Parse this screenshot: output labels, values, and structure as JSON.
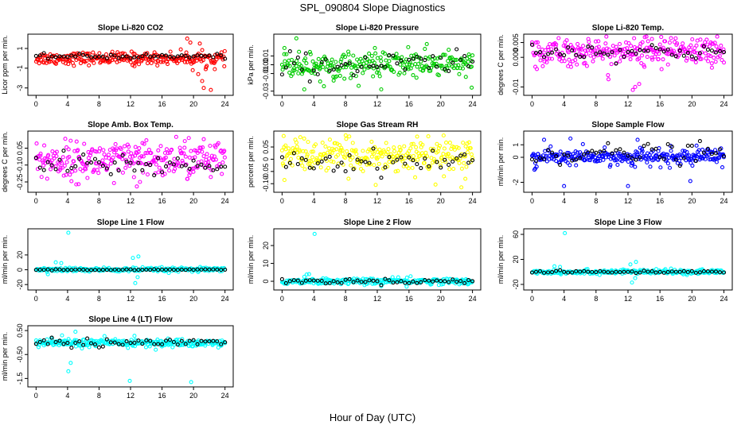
{
  "title": "SPL_090804  Slope Diagnostics",
  "xlabel": "Hour of Day (UTC)",
  "chart_data": [
    {
      "type": "scatter",
      "title": "Slope Li-820 CO2",
      "ylabel": "Licor ppm per min.",
      "color": "#ff0000",
      "xlim": [
        0,
        24
      ],
      "xticks": [
        0,
        4,
        8,
        12,
        16,
        20,
        24
      ],
      "ylim": [
        -3.5,
        2.2
      ],
      "yticks": [
        -3,
        -1,
        1
      ],
      "spread": 0.35,
      "center": 0.0,
      "n": 260,
      "outliers": [
        [
          19.2,
          2.0
        ],
        [
          19.6,
          1.6
        ],
        [
          20.8,
          1.5
        ],
        [
          19.9,
          -1.2
        ],
        [
          20.6,
          -1.6
        ],
        [
          21.1,
          -2.3
        ],
        [
          21.6,
          -0.9
        ],
        [
          22.2,
          -3.2
        ],
        [
          21.3,
          -3.0
        ],
        [
          22.7,
          -1.1
        ],
        [
          12.5,
          -0.8
        ]
      ],
      "black_center": 0.2,
      "black_spread": 0.15
    },
    {
      "type": "scatter",
      "title": "Slope Li-820 Pressure",
      "ylabel": "kPa per min.",
      "color": "#00cc00",
      "xlim": [
        0,
        24
      ],
      "xticks": [
        0,
        4,
        8,
        12,
        16,
        20,
        24
      ],
      "ylim": [
        -0.032,
        0.032
      ],
      "yticks": [
        -0.03,
        -0.01,
        0.0,
        0.01
      ],
      "spread": 0.008,
      "center": 0.0,
      "n": 260,
      "outliers": [
        [
          1.8,
          0.03
        ],
        [
          2.8,
          -0.028
        ],
        [
          12.5,
          -0.028
        ],
        [
          23.9,
          -0.026
        ],
        [
          11.7,
          0.019
        ],
        [
          21.0,
          0.017
        ],
        [
          15.9,
          0.02
        ],
        [
          18.0,
          0.018
        ],
        [
          0.3,
          0.019
        ],
        [
          4.8,
          -0.019
        ],
        [
          6.5,
          -0.018
        ]
      ],
      "black_center": 0.0,
      "black_spread": 0.009
    },
    {
      "type": "scatter",
      "title": "Slope Li-820 Temp.",
      "ylabel": "degrees C per min.",
      "color": "#ff00ff",
      "xlim": [
        0,
        24
      ],
      "xticks": [
        0,
        4,
        8,
        12,
        16,
        20,
        24
      ],
      "ylim": [
        -0.012,
        0.007
      ],
      "yticks": [
        -0.01,
        0.0,
        0.005
      ],
      "spread": 0.0026,
      "center": 0.002,
      "n": 280,
      "outliers": [
        [
          12.6,
          -0.011
        ],
        [
          12.9,
          -0.01
        ],
        [
          13.4,
          -0.009
        ],
        [
          14.1,
          0.0068
        ],
        [
          15.0,
          0.0062
        ],
        [
          9.5,
          -0.006
        ],
        [
          16.2,
          -0.004
        ],
        [
          22.5,
          -0.0035
        ],
        [
          4.5,
          -0.003
        ]
      ],
      "black_center": 0.002,
      "black_spread": 0.0018
    },
    {
      "type": "scatter",
      "title": "Slope Amb. Box Temp.",
      "ylabel": "degrees C per min.",
      "color": "#ff00ff",
      "xlim": [
        0,
        24
      ],
      "xticks": [
        0,
        4,
        8,
        12,
        16,
        20,
        24
      ],
      "ylim": [
        -0.32,
        0.18
      ],
      "yticks": [
        -0.25,
        -0.1,
        0.05
      ],
      "spread": 0.09,
      "center": -0.06,
      "n": 280,
      "outliers": [
        [
          12.8,
          -0.29
        ],
        [
          13.2,
          -0.25
        ],
        [
          9.9,
          -0.26
        ],
        [
          5.4,
          -0.27
        ],
        [
          17.8,
          0.15
        ],
        [
          19.4,
          0.14
        ],
        [
          21.3,
          0.13
        ]
      ],
      "black_center": -0.1,
      "black_spread": 0.07
    },
    {
      "type": "scatter",
      "title": "Slope Gas Stream RH",
      "ylabel": "percent per min.",
      "color": "#ffff00",
      "xlim": [
        0,
        24
      ],
      "xticks": [
        0,
        4,
        8,
        12,
        16,
        20,
        24
      ],
      "ylim": [
        -0.125,
        0.105
      ],
      "yticks": [
        -0.1,
        -0.05,
        0.0,
        0.05
      ],
      "spread": 0.035,
      "center": 0.015,
      "n": 280,
      "outliers": [
        [
          0.3,
          -0.085
        ],
        [
          22.6,
          -0.115
        ],
        [
          11.8,
          -0.105
        ],
        [
          23.1,
          -0.08
        ],
        [
          0.2,
          0.095
        ],
        [
          2.3,
          0.09
        ],
        [
          20.4,
          -0.07
        ]
      ],
      "black_center": -0.01,
      "black_spread": 0.028
    },
    {
      "type": "scatter",
      "title": "Slope Sample Flow",
      "ylabel": "ml/min per min.",
      "color": "#0000ff",
      "xlim": [
        0,
        24
      ],
      "xticks": [
        0,
        4,
        8,
        12,
        16,
        20,
        24
      ],
      "ylim": [
        -2.6,
        1.9
      ],
      "yticks": [
        -2,
        0,
        1
      ],
      "spread": 0.35,
      "center": 0.0,
      "n": 280,
      "outliers": [
        [
          4.0,
          -2.3
        ],
        [
          12.0,
          -2.3
        ],
        [
          19.8,
          -1.9
        ],
        [
          0.3,
          -1.0
        ],
        [
          0.4,
          -0.9
        ],
        [
          23.8,
          -0.8
        ],
        [
          1.5,
          1.4
        ],
        [
          4.8,
          1.5
        ],
        [
          13.2,
          1.4
        ]
      ],
      "black_center": 0.3,
      "black_spread": 0.5
    },
    {
      "type": "scatter",
      "title": "Slope Line 1 Flow",
      "ylabel": "ml/min per min.",
      "color": "#00ffff",
      "xlim": [
        0,
        24
      ],
      "xticks": [
        0,
        4,
        8,
        12,
        16,
        20,
        24
      ],
      "ylim": [
        -24,
        52
      ],
      "yticks": [
        -20,
        0,
        20
      ],
      "spread": 1.6,
      "center": 0.0,
      "n": 260,
      "outliers": [
        [
          4.1,
          50
        ],
        [
          12.6,
          -18
        ],
        [
          12.9,
          -10
        ],
        [
          12.3,
          16
        ],
        [
          13.0,
          18
        ],
        [
          2.5,
          10
        ],
        [
          3.2,
          9
        ],
        [
          1.5,
          -6
        ]
      ],
      "black_center": 0.0,
      "black_spread": 0.4
    },
    {
      "type": "scatter",
      "title": "Slope Line 2 Flow",
      "ylabel": "ml/min per min.",
      "color": "#00ffff",
      "xlim": [
        0,
        24
      ],
      "xticks": [
        0,
        4,
        8,
        12,
        16,
        20,
        24
      ],
      "ylim": [
        -3.5,
        28
      ],
      "yticks": [
        0,
        10,
        20
      ],
      "spread": 0.9,
      "center": 0.0,
      "n": 260,
      "outliers": [
        [
          4.1,
          26.5
        ],
        [
          3.1,
          3.8
        ],
        [
          3.4,
          4.0
        ],
        [
          2.8,
          2.5
        ],
        [
          12.5,
          -2.8
        ],
        [
          15.7,
          -3.0
        ],
        [
          16.2,
          2.8
        ],
        [
          23.5,
          -1.5
        ]
      ],
      "black_center": 0.0,
      "black_spread": 0.8
    },
    {
      "type": "scatter",
      "title": "Slope Line 3 Flow",
      "ylabel": "ml/min per min.",
      "color": "#00ffff",
      "xlim": [
        0,
        24
      ],
      "xticks": [
        0,
        4,
        8,
        12,
        16,
        20,
        24
      ],
      "ylim": [
        -25,
        65
      ],
      "yticks": [
        -20,
        20,
        60
      ],
      "spread": 2.0,
      "center": 0.0,
      "n": 260,
      "outliers": [
        [
          4.1,
          62
        ],
        [
          12.5,
          -17
        ],
        [
          12.9,
          -10
        ],
        [
          13.0,
          16
        ],
        [
          12.3,
          12
        ],
        [
          2.8,
          9
        ],
        [
          3.5,
          8
        ]
      ],
      "black_center": 0.0,
      "black_spread": 1.2
    },
    {
      "type": "scatter",
      "title": "Slope Line 4 (LT) Flow",
      "ylabel": "ml/min per min.",
      "color": "#00ffff",
      "xlim": [
        0,
        24
      ],
      "xticks": [
        0,
        4,
        8,
        12,
        16,
        20,
        24
      ],
      "ylim": [
        -1.75,
        0.6
      ],
      "yticks": [
        -1.5,
        -0.5,
        0.5
      ],
      "spread": 0.09,
      "center": -0.02,
      "n": 280,
      "outliers": [
        [
          5.0,
          0.45
        ],
        [
          4.1,
          -1.2
        ],
        [
          4.4,
          -0.85
        ],
        [
          11.9,
          -1.6
        ],
        [
          19.7,
          -1.65
        ],
        [
          3.3,
          0.3
        ],
        [
          12.5,
          0.28
        ],
        [
          15.2,
          -0.3
        ]
      ],
      "black_center": 0.0,
      "black_spread": 0.12
    }
  ]
}
